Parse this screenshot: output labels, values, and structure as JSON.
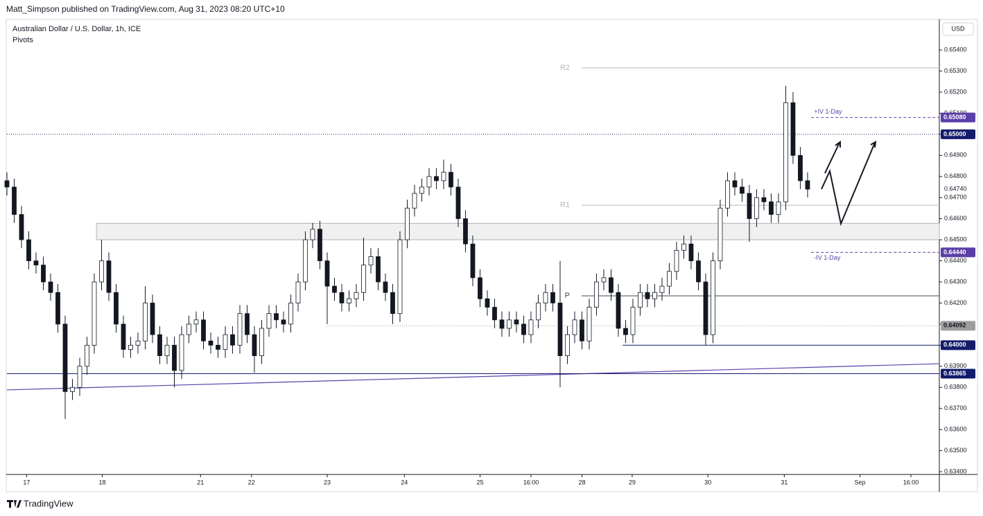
{
  "header": {
    "publisher": "Matt_Simpson published on TradingView.com, Aug 31, 2023 08:20 UTC+10",
    "brand": "TradingView"
  },
  "chart_data": {
    "type": "candlestick",
    "title": "Australian Dollar / U.S. Dollar, 1h, ICE",
    "subtitle": "Pivots",
    "currency": "USD",
    "up_color": "#ffffff",
    "down_color": "#131722",
    "wick_color": "#131722",
    "xlim": [
      0,
      128.1
    ],
    "xticks": [
      {
        "value": 2.7,
        "label": "17"
      },
      {
        "value": 13.1,
        "label": "18"
      },
      {
        "value": 26.6,
        "label": "21"
      },
      {
        "value": 33.6,
        "label": "22"
      },
      {
        "value": 44,
        "label": "23"
      },
      {
        "value": 54.6,
        "label": "24"
      },
      {
        "value": 65,
        "label": "25"
      },
      {
        "value": 72,
        "label": "16:00"
      },
      {
        "value": 79,
        "label": "28"
      },
      {
        "value": 85.9,
        "label": "29"
      },
      {
        "value": 96.3,
        "label": "30"
      },
      {
        "value": 106.8,
        "label": "31"
      },
      {
        "value": 117.2,
        "label": "Sep"
      },
      {
        "value": 124.2,
        "label": "16:00"
      }
    ],
    "ylim": [
      0.63387,
      0.65545
    ],
    "yticks": [
      {
        "value": 0.634,
        "label": "0.63400"
      },
      {
        "value": 0.635,
        "label": "0.63500"
      },
      {
        "value": 0.636,
        "label": "0.63600"
      },
      {
        "value": 0.637,
        "label": "0.63700"
      },
      {
        "value": 0.638,
        "label": "0.63800"
      },
      {
        "value": 0.639,
        "label": "0.63900"
      },
      {
        "value": 0.64,
        "label": "0.64000"
      },
      {
        "value": 0.641,
        "label": "0.64100"
      },
      {
        "value": 0.642,
        "label": "0.64200"
      },
      {
        "value": 0.643,
        "label": "0.64300"
      },
      {
        "value": 0.644,
        "label": "0.64400"
      },
      {
        "value": 0.645,
        "label": "0.64500"
      },
      {
        "value": 0.646,
        "label": "0.64600"
      },
      {
        "value": 0.647,
        "label": "0.64700"
      },
      {
        "value": 0.648,
        "label": "0.64800"
      },
      {
        "value": 0.649,
        "label": "0.64900"
      },
      {
        "value": 0.65,
        "label": "0.65000"
      },
      {
        "value": 0.651,
        "label": "0.65100"
      },
      {
        "value": 0.652,
        "label": "0.65200"
      },
      {
        "value": 0.653,
        "label": "0.65300"
      },
      {
        "value": 0.654,
        "label": "0.65400"
      }
    ],
    "open": [
      0.6478,
      0.6475,
      0.6462,
      0.645,
      0.644,
      0.6438,
      0.643,
      0.6425,
      0.641,
      0.6378,
      0.638,
      0.639,
      0.64,
      0.643,
      0.644,
      0.6425,
      0.641,
      0.6398,
      0.64,
      0.6402,
      0.642,
      0.6405,
      0.6395,
      0.64,
      0.6388,
      0.6405,
      0.641,
      0.6412,
      0.6402,
      0.64,
      0.6398,
      0.6405,
      0.64,
      0.6415,
      0.6405,
      0.6395,
      0.6408,
      0.6415,
      0.6412,
      0.641,
      0.642,
      0.643,
      0.645,
      0.6455,
      0.644,
      0.6428,
      0.6425,
      0.642,
      0.6422,
      0.6425,
      0.6438,
      0.6442,
      0.643,
      0.6425,
      0.6415,
      0.645,
      0.6465,
      0.6472,
      0.6475,
      0.648,
      0.6478,
      0.6482,
      0.6475,
      0.646,
      0.6448,
      0.6432,
      0.6422,
      0.6418,
      0.6412,
      0.6408,
      0.6412,
      0.641,
      0.6405,
      0.6412,
      0.642,
      0.6425,
      0.642,
      0.6395,
      0.6405,
      0.6412,
      0.6402,
      0.6418,
      0.643,
      0.6432,
      0.6425,
      0.6408,
      0.6405,
      0.6418,
      0.6425,
      0.6422,
      0.6425,
      0.6428,
      0.6435,
      0.6445,
      0.6448,
      0.644,
      0.643,
      0.6405,
      0.644,
      0.6465,
      0.6478,
      0.6475,
      0.6472,
      0.646,
      0.647,
      0.6468,
      0.6462,
      0.6468,
      0.6515,
      0.649,
      0.6478
    ],
    "high": [
      0.6482,
      0.6479,
      0.6466,
      0.6454,
      0.6444,
      0.6442,
      0.6434,
      0.6429,
      0.6414,
      0.6384,
      0.6394,
      0.6404,
      0.6434,
      0.645,
      0.6444,
      0.6429,
      0.6414,
      0.6404,
      0.6406,
      0.6428,
      0.6424,
      0.6409,
      0.6404,
      0.6404,
      0.6409,
      0.6414,
      0.6416,
      0.6416,
      0.6406,
      0.6404,
      0.6409,
      0.6409,
      0.6419,
      0.6419,
      0.6409,
      0.6412,
      0.6419,
      0.6419,
      0.6416,
      0.6424,
      0.6434,
      0.6454,
      0.6458,
      0.6459,
      0.6444,
      0.6432,
      0.6429,
      0.6426,
      0.6429,
      0.6451,
      0.6446,
      0.6446,
      0.6434,
      0.6429,
      0.6454,
      0.6469,
      0.6476,
      0.6479,
      0.6484,
      0.6484,
      0.6488,
      0.6486,
      0.6479,
      0.6464,
      0.6452,
      0.6436,
      0.6426,
      0.6422,
      0.6416,
      0.6416,
      0.6416,
      0.6414,
      0.6416,
      0.6424,
      0.6429,
      0.6429,
      0.644,
      0.6409,
      0.6416,
      0.6416,
      0.6422,
      0.6434,
      0.6436,
      0.6436,
      0.6429,
      0.6412,
      0.6422,
      0.6429,
      0.6429,
      0.6429,
      0.6432,
      0.6439,
      0.6449,
      0.6452,
      0.6452,
      0.6444,
      0.6434,
      0.6444,
      0.6469,
      0.6482,
      0.6482,
      0.6479,
      0.6476,
      0.6474,
      0.6474,
      0.6472,
      0.6472,
      0.6523,
      0.652,
      0.6494,
      0.6482
    ],
    "low": [
      0.6471,
      0.6458,
      0.6446,
      0.6436,
      0.6434,
      0.6426,
      0.6421,
      0.6406,
      0.6365,
      0.6374,
      0.6376,
      0.6386,
      0.6396,
      0.6426,
      0.6421,
      0.6406,
      0.6394,
      0.6394,
      0.6396,
      0.6398,
      0.6401,
      0.6391,
      0.6391,
      0.638,
      0.6384,
      0.6401,
      0.6406,
      0.6398,
      0.6396,
      0.6394,
      0.6394,
      0.6396,
      0.6396,
      0.6401,
      0.6387,
      0.6391,
      0.6404,
      0.6408,
      0.6406,
      0.6406,
      0.6416,
      0.6426,
      0.6446,
      0.6436,
      0.641,
      0.6421,
      0.6416,
      0.6416,
      0.6418,
      0.6421,
      0.6434,
      0.6426,
      0.6421,
      0.641,
      0.6411,
      0.6446,
      0.6461,
      0.6468,
      0.6471,
      0.6474,
      0.6474,
      0.6471,
      0.6456,
      0.6444,
      0.6428,
      0.6418,
      0.6414,
      0.6408,
      0.6404,
      0.6404,
      0.6406,
      0.6401,
      0.6401,
      0.6408,
      0.6416,
      0.6416,
      0.638,
      0.6391,
      0.6401,
      0.6398,
      0.6398,
      0.6414,
      0.6426,
      0.6421,
      0.6404,
      0.6401,
      0.6401,
      0.6414,
      0.6418,
      0.6418,
      0.6421,
      0.6424,
      0.6431,
      0.6441,
      0.6436,
      0.6426,
      0.64,
      0.6401,
      0.6436,
      0.6461,
      0.6471,
      0.6468,
      0.6449,
      0.6456,
      0.6464,
      0.6458,
      0.6458,
      0.6464,
      0.6486,
      0.6474,
      0.647
    ],
    "close": [
      0.6475,
      0.6462,
      0.645,
      0.644,
      0.6438,
      0.643,
      0.6425,
      0.641,
      0.6378,
      0.638,
      0.639,
      0.64,
      0.643,
      0.644,
      0.6425,
      0.641,
      0.6398,
      0.64,
      0.6402,
      0.642,
      0.6405,
      0.6395,
      0.64,
      0.6388,
      0.6405,
      0.641,
      0.6412,
      0.6402,
      0.64,
      0.6398,
      0.6405,
      0.64,
      0.6415,
      0.6405,
      0.6395,
      0.6408,
      0.6415,
      0.6412,
      0.641,
      0.642,
      0.643,
      0.645,
      0.6455,
      0.644,
      0.6428,
      0.6425,
      0.642,
      0.6422,
      0.6425,
      0.6438,
      0.6442,
      0.643,
      0.6425,
      0.6415,
      0.645,
      0.6465,
      0.6472,
      0.6475,
      0.648,
      0.6478,
      0.6482,
      0.6475,
      0.646,
      0.6448,
      0.6432,
      0.6422,
      0.6418,
      0.6412,
      0.6408,
      0.6412,
      0.641,
      0.6405,
      0.6412,
      0.642,
      0.6425,
      0.642,
      0.6395,
      0.6405,
      0.6412,
      0.6402,
      0.6418,
      0.643,
      0.6432,
      0.6425,
      0.6408,
      0.6405,
      0.6418,
      0.6425,
      0.6422,
      0.6425,
      0.6428,
      0.6435,
      0.6445,
      0.6448,
      0.644,
      0.643,
      0.6405,
      0.644,
      0.6465,
      0.6478,
      0.6475,
      0.6472,
      0.646,
      0.647,
      0.6468,
      0.6462,
      0.6468,
      0.6515,
      0.649,
      0.6478,
      0.6474
    ],
    "pivots": [
      {
        "name": "R2",
        "value": 0.65315,
        "color": "#b2b5be"
      },
      {
        "name": "R1",
        "value": 0.64664,
        "color": "#b2b5be"
      },
      {
        "name": "P",
        "value": 0.64234,
        "color": "#434651"
      }
    ],
    "zone": [
      0.645,
      0.64578
    ],
    "trendline": [
      0.63788,
      0.63912
    ],
    "levels": [
      {
        "value": 0.6508,
        "label": "0.65080",
        "name": "+IV 1-Day",
        "style": "dashed",
        "color": "#5b3fa8"
      },
      {
        "value": 0.65,
        "label": "0.65000",
        "style": "dotted",
        "color": "#131c6b"
      },
      {
        "value": 0.6474,
        "label": "0.64740"
      },
      {
        "value": 0.6444,
        "label": "0.64440",
        "name": "-IV 1-Day",
        "style": "dashed",
        "color": "#5b3fa8"
      },
      {
        "value": 0.64092,
        "label": "0.64092",
        "style": "dotted",
        "color": "#9e9e9e"
      },
      {
        "value": 0.64,
        "label": "0.64000",
        "style": "solid",
        "color": "#131c6b"
      },
      {
        "value": 0.63865,
        "label": "0.63865",
        "style": "solid",
        "color": "#131c6b"
      }
    ]
  }
}
